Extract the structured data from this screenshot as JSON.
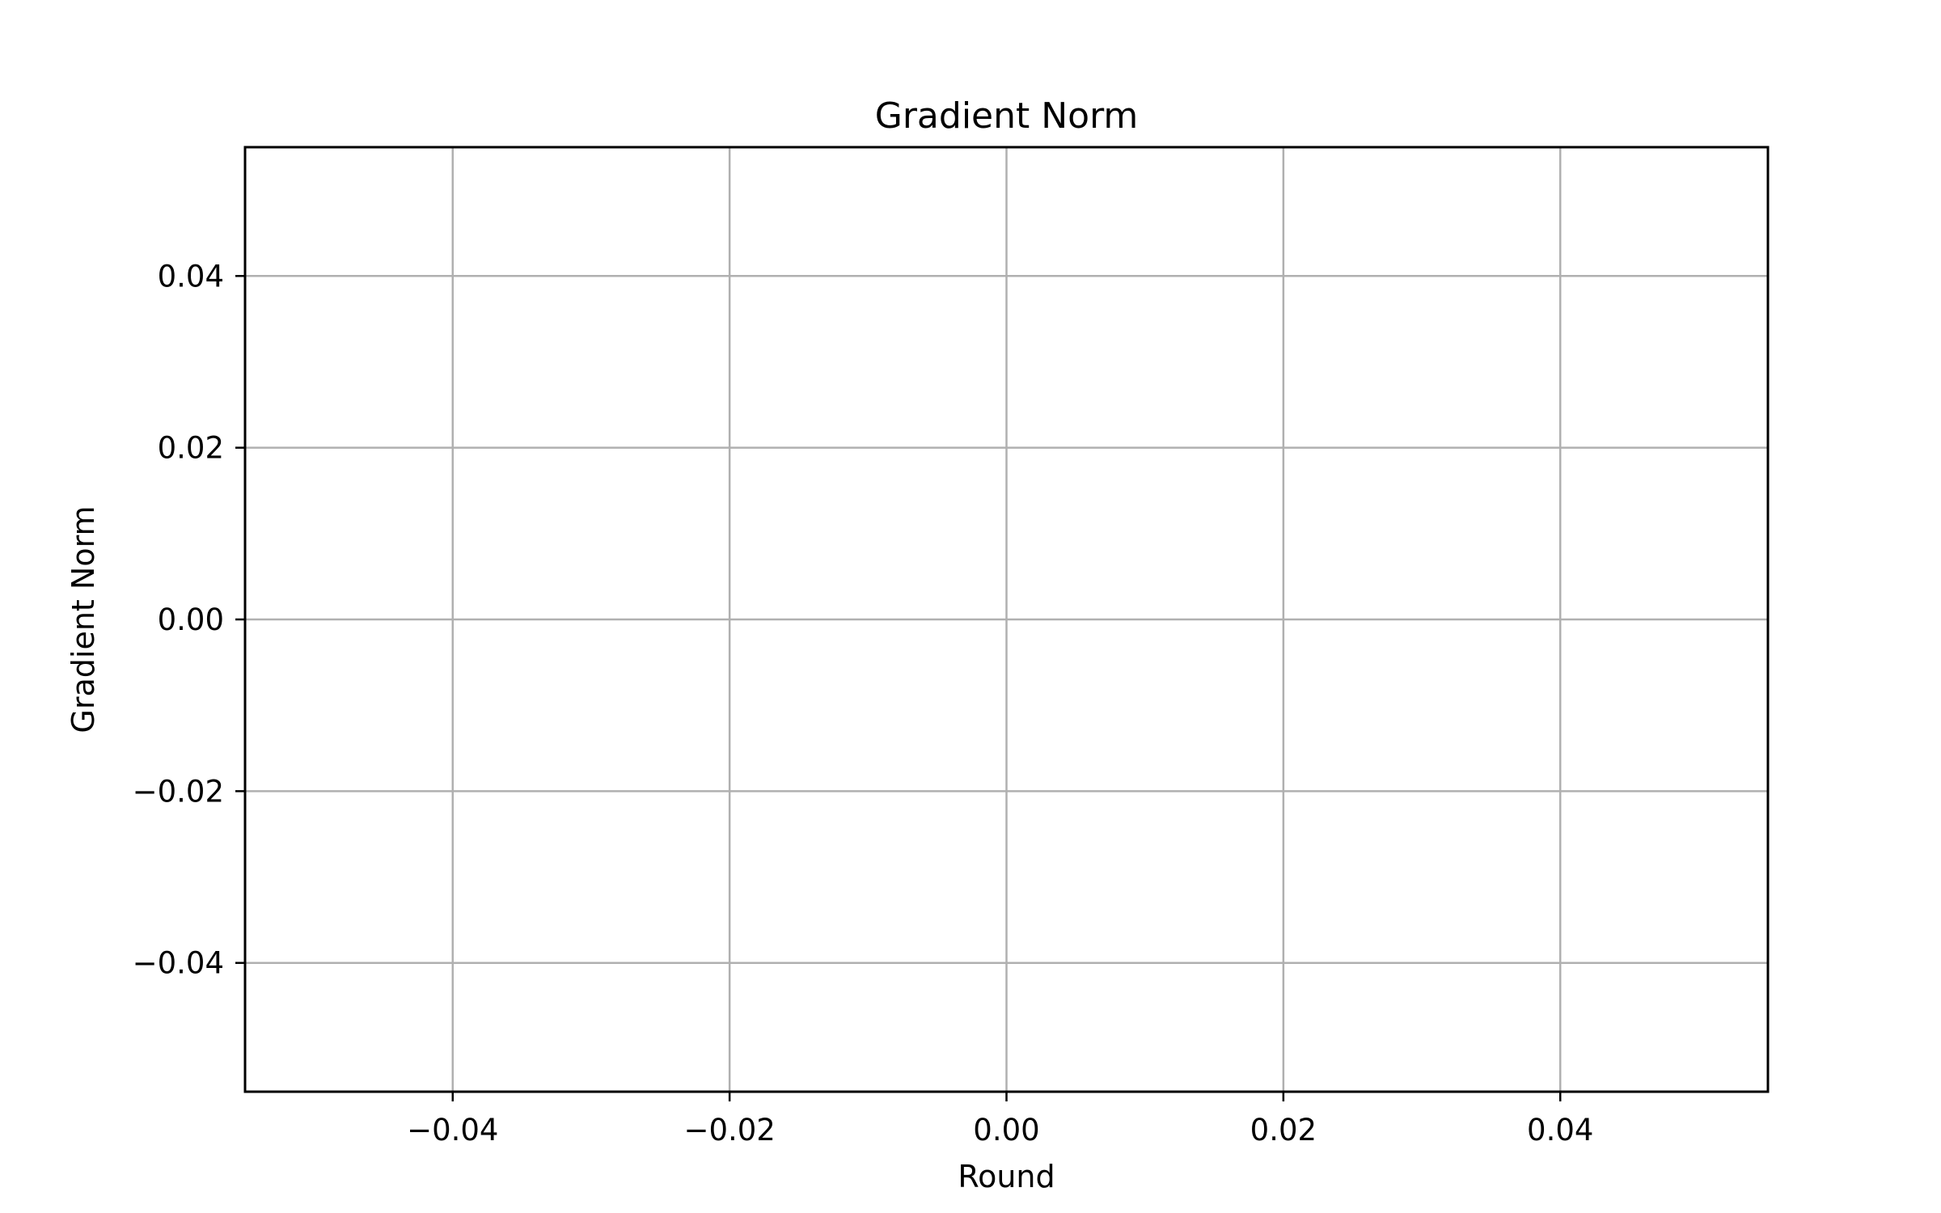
{
  "chart_data": {
    "type": "line",
    "title": "Gradient Norm",
    "xlabel": "Round",
    "ylabel": "Gradient Norm",
    "xlim": [
      -0.055,
      0.055
    ],
    "ylim": [
      -0.055,
      0.055
    ],
    "x_ticks": [
      -0.04,
      -0.02,
      0.0,
      0.02,
      0.04
    ],
    "x_tick_labels": [
      "−0.04",
      "−0.02",
      "0.00",
      "0.02",
      "0.04"
    ],
    "y_ticks": [
      -0.04,
      -0.02,
      0.0,
      0.02,
      0.04
    ],
    "y_tick_labels": [
      "−0.04",
      "−0.02",
      "0.00",
      "0.02",
      "0.04"
    ],
    "grid": true,
    "series": []
  }
}
